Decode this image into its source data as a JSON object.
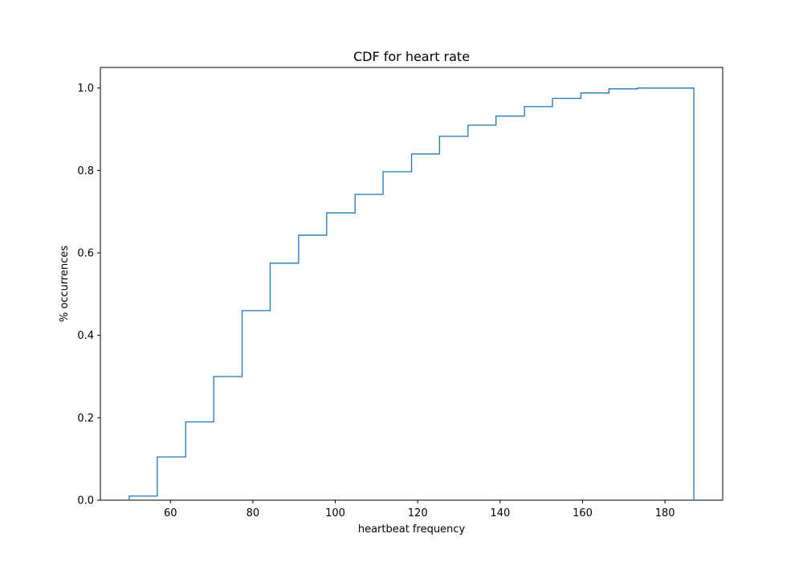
{
  "chart_data": {
    "type": "histogram-step-cdf",
    "title": "CDF for heart rate",
    "xlabel": "heartbeat frequency",
    "ylabel": "% occurrences",
    "xlim": [
      43,
      194
    ],
    "ylim": [
      0,
      1.05
    ],
    "xticks": [
      60,
      80,
      100,
      120,
      140,
      160,
      180
    ],
    "yticks": [
      0.0,
      0.2,
      0.4,
      0.6,
      0.8,
      1.0
    ],
    "xtick_labels": [
      "60",
      "80",
      "100",
      "120",
      "140",
      "160",
      "180"
    ],
    "ytick_labels": [
      "0.0",
      "0.2",
      "0.4",
      "0.6",
      "0.8",
      "1.0"
    ],
    "line_color": "#1f77b4",
    "bin_edges": [
      50,
      56.8,
      63.7,
      70.5,
      77.4,
      84.2,
      91.1,
      97.9,
      104.8,
      111.6,
      118.5,
      125.3,
      132.2,
      139.0,
      145.9,
      152.7,
      159.6,
      166.4,
      173.3,
      187.0
    ],
    "cdf_values": [
      0.01,
      0.105,
      0.19,
      0.3,
      0.46,
      0.575,
      0.643,
      0.697,
      0.742,
      0.797,
      0.84,
      0.883,
      0.91,
      0.932,
      0.955,
      0.975,
      0.988,
      0.998,
      1.0
    ]
  }
}
